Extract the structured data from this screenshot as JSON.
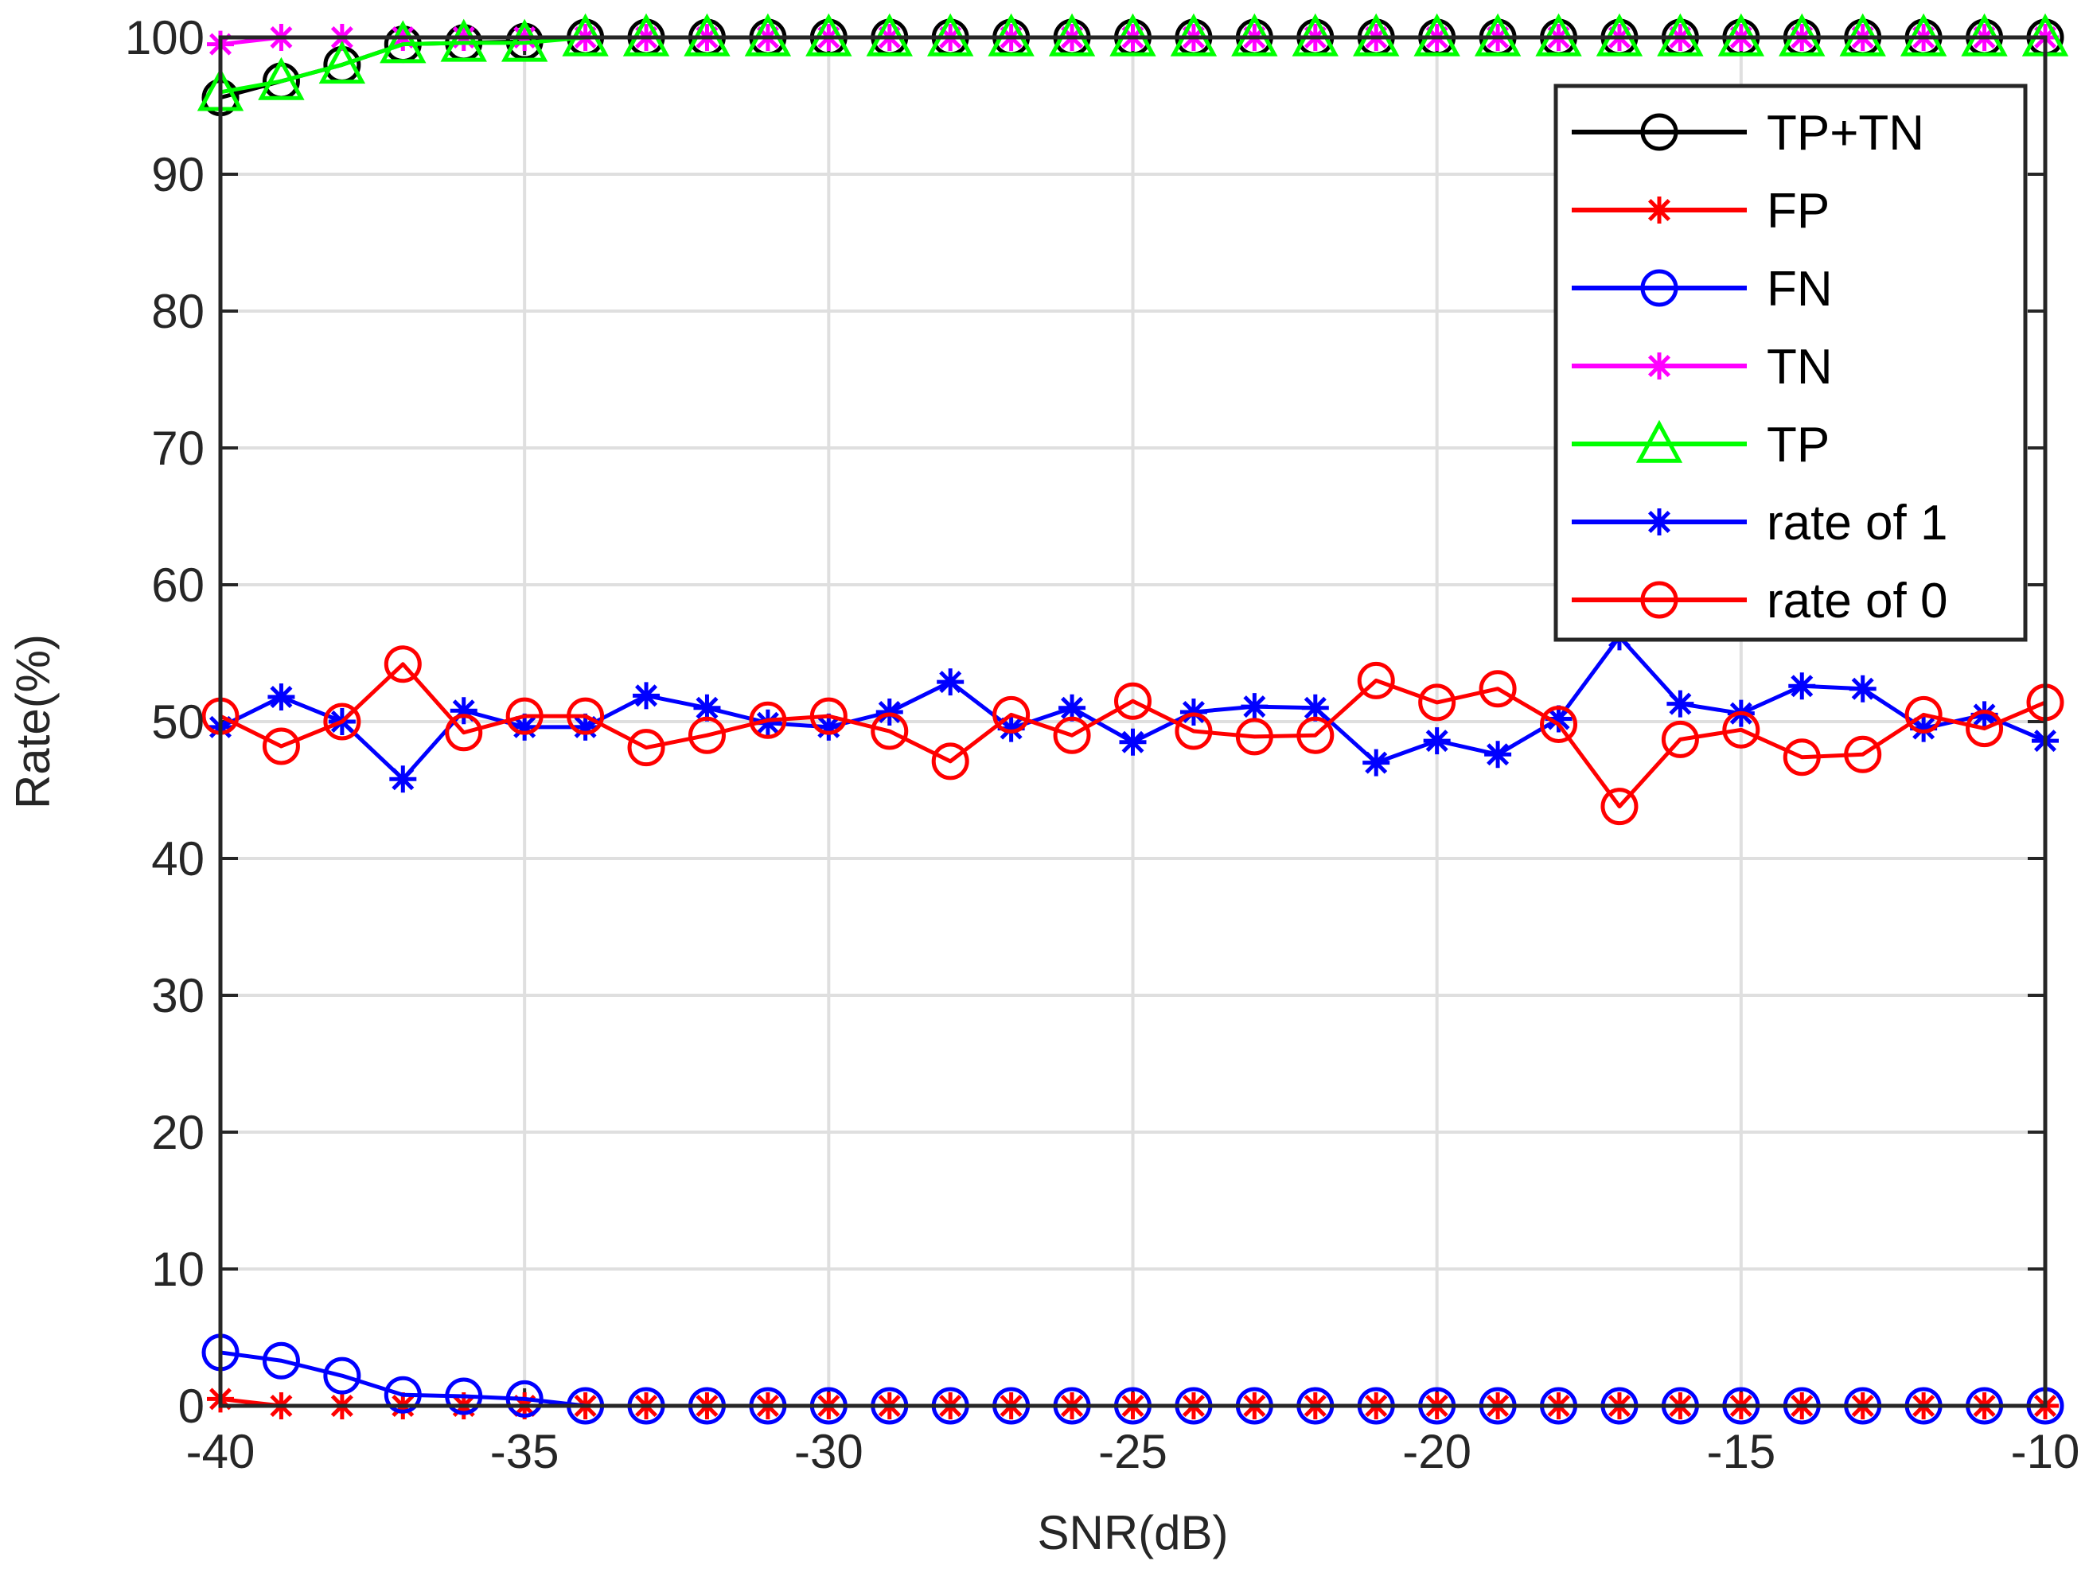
{
  "chart_data": {
    "type": "line",
    "title": "",
    "xlabel": "SNR(dB)",
    "ylabel": "Rate(%)",
    "xlim": [
      -40,
      -10
    ],
    "ylim": [
      0,
      100
    ],
    "xticks": [
      -40,
      -35,
      -30,
      -25,
      -20,
      -15,
      -10
    ],
    "yticks": [
      0,
      10,
      20,
      30,
      40,
      50,
      60,
      70,
      80,
      90,
      100
    ],
    "grid": true,
    "legend_position": "top-right",
    "x": [
      -40,
      -39,
      -38,
      -37,
      -36,
      -35,
      -34,
      -33,
      -32,
      -31,
      -30,
      -29,
      -28,
      -27,
      -26,
      -25,
      -24,
      -23,
      -22,
      -21,
      -20,
      -19,
      -18,
      -17,
      -16,
      -15,
      -14,
      -13,
      -12,
      -11,
      -10
    ],
    "series": [
      {
        "name": "TP+TN",
        "color": "#000000",
        "marker": "circle",
        "values": [
          95.6,
          96.8,
          98.0,
          99.5,
          99.6,
          99.7,
          100,
          100,
          100,
          100,
          100,
          100,
          100,
          100,
          100,
          100,
          100,
          100,
          100,
          100,
          100,
          100,
          100,
          100,
          100,
          100,
          100,
          100,
          100,
          100,
          100
        ]
      },
      {
        "name": "FP",
        "color": "#ff0000",
        "marker": "asterisk",
        "values": [
          0.5,
          0,
          0,
          0,
          0,
          0,
          0,
          0,
          0,
          0,
          0,
          0,
          0,
          0,
          0,
          0,
          0,
          0,
          0,
          0,
          0,
          0,
          0,
          0,
          0,
          0,
          0,
          0,
          0,
          0,
          0
        ]
      },
      {
        "name": "FN",
        "color": "#0000ff",
        "marker": "circle",
        "values": [
          3.9,
          3.3,
          2.2,
          0.8,
          0.7,
          0.5,
          0,
          0,
          0,
          0,
          0,
          0,
          0,
          0,
          0,
          0,
          0,
          0,
          0,
          0,
          0,
          0,
          0,
          0,
          0,
          0,
          0,
          0,
          0,
          0,
          0
        ]
      },
      {
        "name": "TN",
        "color": "#ff00ff",
        "marker": "asterisk",
        "values": [
          99.5,
          100,
          100,
          100,
          100,
          100,
          100,
          100,
          100,
          100,
          100,
          100,
          100,
          100,
          100,
          100,
          100,
          100,
          100,
          100,
          100,
          100,
          100,
          100,
          100,
          100,
          100,
          100,
          100,
          100,
          100
        ]
      },
      {
        "name": "TP",
        "color": "#00ff00",
        "marker": "triangle",
        "values": [
          96.0,
          96.8,
          98.0,
          99.5,
          99.6,
          99.6,
          100,
          100,
          100,
          100,
          100,
          100,
          100,
          100,
          100,
          100,
          100,
          100,
          100,
          100,
          100,
          100,
          100,
          100,
          100,
          100,
          100,
          100,
          100,
          100,
          100
        ]
      },
      {
        "name": "rate of 1",
        "color": "#0000ff",
        "marker": "asterisk",
        "values": [
          49.6,
          51.8,
          50.0,
          45.8,
          50.8,
          49.6,
          49.6,
          51.9,
          51.0,
          49.9,
          49.6,
          50.7,
          52.9,
          49.5,
          51.0,
          48.5,
          50.7,
          51.1,
          51.0,
          47.0,
          48.6,
          47.6,
          50.2,
          56.2,
          51.3,
          50.6,
          52.6,
          52.4,
          49.5,
          50.5,
          48.6
        ]
      },
      {
        "name": "rate of 0",
        "color": "#ff0000",
        "marker": "circle",
        "values": [
          50.4,
          48.2,
          50.0,
          54.2,
          49.2,
          50.4,
          50.4,
          48.1,
          49.0,
          50.1,
          50.4,
          49.3,
          47.1,
          50.5,
          49.0,
          51.5,
          49.3,
          48.9,
          49.0,
          53.0,
          51.4,
          52.4,
          49.8,
          43.8,
          48.7,
          49.4,
          47.4,
          47.6,
          50.5,
          49.5,
          51.4
        ]
      }
    ]
  }
}
